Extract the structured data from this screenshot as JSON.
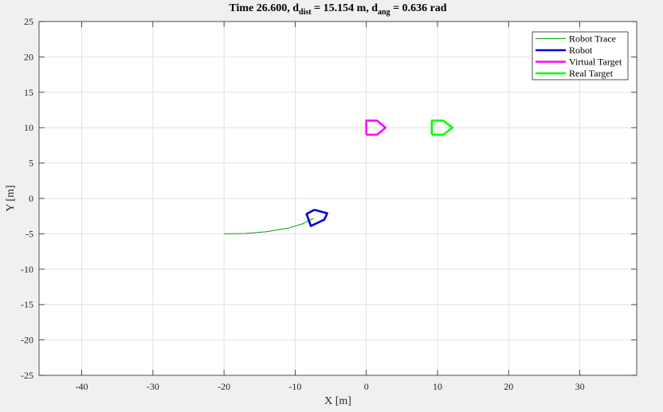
{
  "chart_data": {
    "type": "line",
    "title": {
      "prefix": "Time 26.600, d",
      "sub1": "dist",
      "middle": " = 15.154 m, d",
      "sub2": "ang",
      "suffix": " = 0.636 rad"
    },
    "xlabel": "X [m]",
    "ylabel": "Y [m]",
    "xlim": [
      -46,
      38
    ],
    "ylim": [
      -25,
      25
    ],
    "xticks": [
      -40,
      -30,
      -20,
      -10,
      0,
      10,
      20,
      30
    ],
    "yticks": [
      25,
      20,
      15,
      10,
      5,
      0,
      -5,
      -10,
      -15,
      -20,
      -25
    ],
    "xtick_labels": [
      "-40",
      "-30",
      "-20",
      "-10",
      "0",
      "10",
      "20",
      "30"
    ],
    "ytick_labels": [
      "25",
      "20",
      "15",
      "10",
      "5",
      "0",
      "-5",
      "-10",
      "-15",
      "-20",
      "-25"
    ],
    "grid": true,
    "legend_position": "top-right",
    "series": [
      {
        "name": "Robot Trace",
        "color": "#00a000",
        "line_width": "thin",
        "points": [
          [
            -20,
            -5
          ],
          [
            -17,
            -4.95
          ],
          [
            -14,
            -4.7
          ],
          [
            -11,
            -4.2
          ],
          [
            -9,
            -3.6
          ],
          [
            -7.4,
            -2.8
          ]
        ]
      },
      {
        "name": "Robot",
        "color": "#0000dd",
        "line_width": "thick",
        "points": [
          [
            -7.3,
            -1.6
          ],
          [
            -5.5,
            -2.1
          ],
          [
            -5.9,
            -3.0
          ],
          [
            -7.8,
            -3.9
          ],
          [
            -8.4,
            -2.2
          ],
          [
            -7.3,
            -1.6
          ]
        ]
      },
      {
        "name": "Virtual Target",
        "color": "#ff00ff",
        "line_width": "thick",
        "points": [
          [
            0,
            9
          ],
          [
            1.5,
            9
          ],
          [
            2.7,
            10
          ],
          [
            1.5,
            11
          ],
          [
            0,
            11
          ],
          [
            0,
            9
          ]
        ]
      },
      {
        "name": "Real Target",
        "color": "#00ff00",
        "line_width": "thick",
        "points": [
          [
            9.2,
            9
          ],
          [
            10.8,
            9
          ],
          [
            12.1,
            10
          ],
          [
            10.8,
            11
          ],
          [
            9.2,
            11
          ],
          [
            9.2,
            9
          ]
        ]
      }
    ]
  }
}
